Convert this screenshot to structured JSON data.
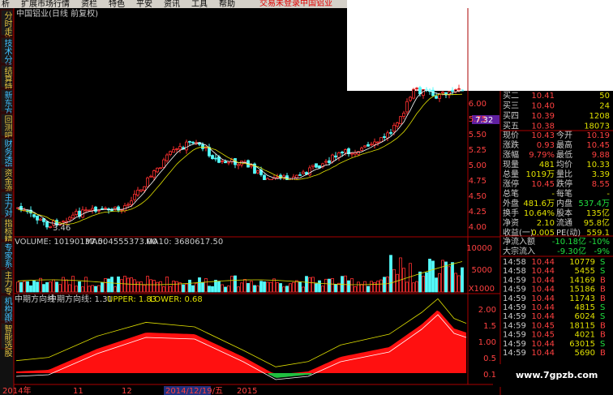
{
  "menu": [
    "析",
    "扩展市场行情",
    "资栏",
    "特色",
    "平安",
    "资讯",
    "工具",
    "帮助"
  ],
  "menu_status": [
    "交易未登录",
    "中国铝业"
  ],
  "sidebar": [
    "分时走势",
    "技术分析",
    "结算特",
    "新东方",
    "回测吧",
    "财务透视",
    "资金流",
    "主力对比",
    "指标精灵",
    "专家系统",
    "主力专家",
    "机构跟踪",
    "智能选股"
  ],
  "chart": {
    "title": "中国铝业(日线 前复权)",
    "low_label": "3.46",
    "price_axis": [
      "6.00",
      "5.75",
      "5.50",
      "5.25",
      "5.00",
      "4.75",
      "4.50",
      "4.25",
      "4.00"
    ],
    "current_price": "7.32",
    "volume_header": [
      "VOLUME: 10190137.00",
      "MA5: 4555373.00",
      "MA10: 3680617.50"
    ],
    "volume_axis": [
      "10000",
      "5000",
      "X1000"
    ],
    "indicator_header": [
      "中期方向线",
      "中期方向线: 1.31",
      "UPPER: 1.83",
      "LOWER: 0.68"
    ],
    "indicator_axis": [
      "2.00",
      "1.5",
      "1.00",
      "0.5",
      "0.1"
    ],
    "dates": [
      "2014年",
      "11",
      "12",
      "2014/12/19/五",
      "2015"
    ]
  },
  "quote": {
    "bids": [
      [
        "买二",
        "10.41",
        "50"
      ],
      [
        "买三",
        "10.40",
        "24"
      ],
      [
        "买四",
        "10.39",
        "1208"
      ],
      [
        "买五",
        "10.38",
        "18073"
      ]
    ],
    "stats": [
      [
        "现价",
        "10.43",
        "今开",
        "10.19"
      ],
      [
        "涨跌",
        "0.93",
        "最高",
        "10.45"
      ],
      [
        "涨幅",
        "9.79%",
        "最低",
        "9.88"
      ],
      [
        "现量",
        "481",
        "均价",
        "10.33"
      ],
      [
        "总量",
        "1019万",
        "量比",
        "3.39"
      ],
      [
        "涨停",
        "10.45",
        "跌停",
        "8.55"
      ],
      [
        "总笔",
        "-",
        "每笔",
        "-"
      ],
      [
        "外盘",
        "481.6万",
        "内盘",
        "537.4万"
      ],
      [
        "换手",
        "10.64%",
        "股本",
        "135亿"
      ],
      [
        "净资",
        "2.10",
        "流通",
        "95.8亿"
      ],
      [
        "收益(一)",
        "0.005",
        "PE(动)",
        "559.1"
      ]
    ],
    "flows": [
      [
        "净流入额",
        "-10.18亿",
        "-10%"
      ],
      [
        "大宗流入",
        "-9.30亿",
        "-9%"
      ]
    ],
    "ticks": [
      [
        "14:58",
        "10.44",
        "10779",
        "S"
      ],
      [
        "14:58",
        "10.44",
        "5455",
        "S"
      ],
      [
        "14:59",
        "10.44",
        "14169",
        "B"
      ],
      [
        "14:59",
        "10.44",
        "15186",
        "B"
      ],
      [
        "14:59",
        "10.44",
        "11743",
        "B"
      ],
      [
        "14:59",
        "10.44",
        "4815",
        "S"
      ],
      [
        "14:59",
        "10.44",
        "6024",
        "S"
      ],
      [
        "14:59",
        "10.45",
        "18115",
        "B"
      ],
      [
        "14:59",
        "10.45",
        "4021",
        "B"
      ],
      [
        "14:59",
        "10.44",
        "63015",
        "S"
      ],
      [
        "14:59",
        "10.44",
        "5690",
        "B"
      ]
    ]
  },
  "watermark": "www.7gpzb.com"
}
